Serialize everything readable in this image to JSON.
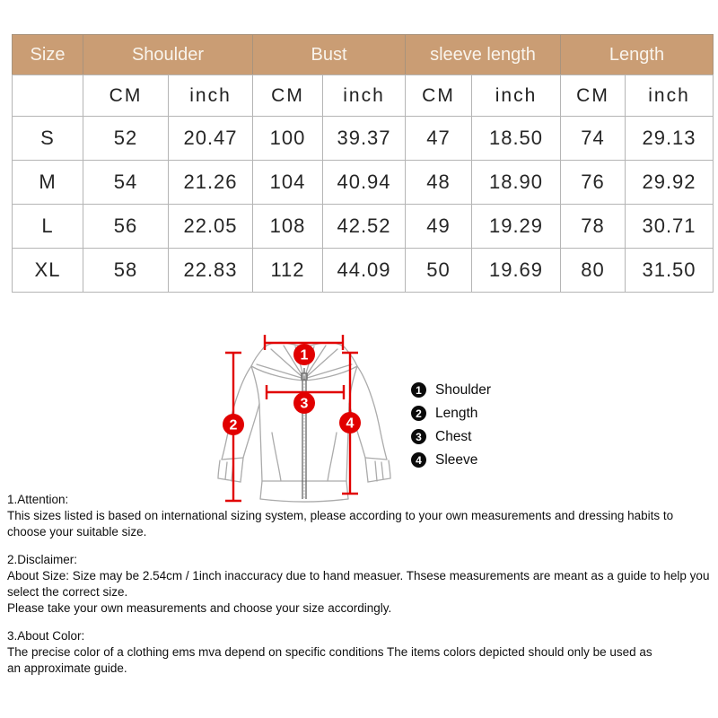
{
  "table": {
    "headers": {
      "size": "Size",
      "shoulder": "Shoulder",
      "bust": "Bust",
      "sleeve": "sleeve length",
      "length": "Length"
    },
    "units": {
      "cm": "CM",
      "inch": "inch"
    },
    "rows": [
      {
        "size": "S",
        "cells": [
          "52",
          "20.47",
          "100",
          "39.37",
          "47",
          "18.50",
          "74",
          "29.13"
        ]
      },
      {
        "size": "M",
        "cells": [
          "54",
          "21.26",
          "104",
          "40.94",
          "48",
          "18.90",
          "76",
          "29.92"
        ]
      },
      {
        "size": "L",
        "cells": [
          "56",
          "22.05",
          "108",
          "42.52",
          "49",
          "19.29",
          "78",
          "30.71"
        ]
      },
      {
        "size": "XL",
        "cells": [
          "58",
          "22.83",
          "112",
          "44.09",
          "50",
          "19.69",
          "80",
          "31.50"
        ]
      }
    ]
  },
  "diagram": {
    "callouts": [
      "1",
      "2",
      "3",
      "4"
    ]
  },
  "legend": {
    "items": [
      {
        "num": "1",
        "label": "Shoulder"
      },
      {
        "num": "2",
        "label": "Length"
      },
      {
        "num": "3",
        "label": "Chest"
      },
      {
        "num": "4",
        "label": "Sleeve"
      }
    ]
  },
  "notes": [
    {
      "title": "1.Attention:",
      "lines": [
        "This sizes listed is based on international sizing system, please according to your own measurements and dressing habits to choose your suitable size."
      ]
    },
    {
      "title": "2.Disclaimer:",
      "lines": [
        "About Size: Size may be 2.54cm / 1inch inaccuracy due to hand measuer. Thsese measurements are meant as a guide to help you select the correct size.",
        "Please take your own measurements and choose your size accordingly."
      ]
    },
    {
      "title": "3.About Color:",
      "lines": [
        "The precise color of a clothing ems mva depend on specific conditions The items colors depicted should only be used as",
        "an approximate guide."
      ]
    }
  ],
  "colors": {
    "header_bg": "#ca9d74",
    "header_text": "#f9f4ec",
    "accent_red": "#e10000",
    "grid_line": "#b5b5b5",
    "body_text": "#222222",
    "sketch_line": "#ababab",
    "legend_badge": "#0a0a0a"
  }
}
